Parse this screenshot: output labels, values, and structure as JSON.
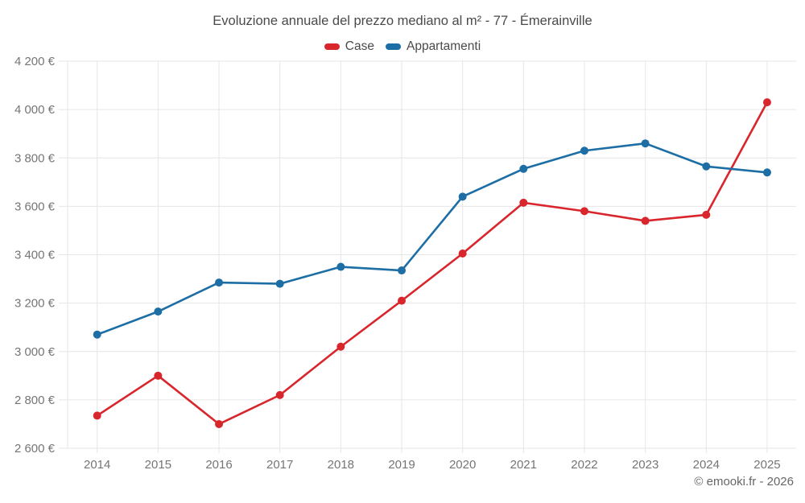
{
  "chart": {
    "copyright": "© emooki.fr - 2026"
  },
  "chart_data": {
    "type": "line",
    "title": "Evoluzione annuale del prezzo mediano al m² - 77 - Émerainville",
    "categories": [
      "2014",
      "2015",
      "2016",
      "2017",
      "2018",
      "2019",
      "2020",
      "2021",
      "2022",
      "2023",
      "2024",
      "2025"
    ],
    "series": [
      {
        "name": "Case",
        "color": "#d8262c",
        "values": [
          2735,
          2900,
          2700,
          2820,
          3020,
          3210,
          3405,
          3615,
          3580,
          3540,
          3565,
          4030
        ]
      },
      {
        "name": "Appartamenti",
        "color": "#1c6ea4",
        "values": [
          3070,
          3165,
          3285,
          3280,
          3350,
          3335,
          3640,
          3755,
          3830,
          3860,
          3765,
          3740
        ]
      }
    ],
    "xlabel": "",
    "ylabel": "",
    "ylim": [
      2600,
      4200
    ],
    "ytick_step": 200,
    "yticks": [
      2600,
      2800,
      3000,
      3200,
      3400,
      3600,
      3800,
      4000,
      4200
    ],
    "ytick_labels": [
      "2 600 €",
      "2 800 €",
      "3 000 €",
      "3 200 €",
      "3 400 €",
      "3 600 €",
      "3 800 €",
      "4 000 €",
      "4 200 €"
    ],
    "grid": true,
    "grid_color": "#e6e6e6",
    "legend_position": "top",
    "background": "#ffffff"
  }
}
